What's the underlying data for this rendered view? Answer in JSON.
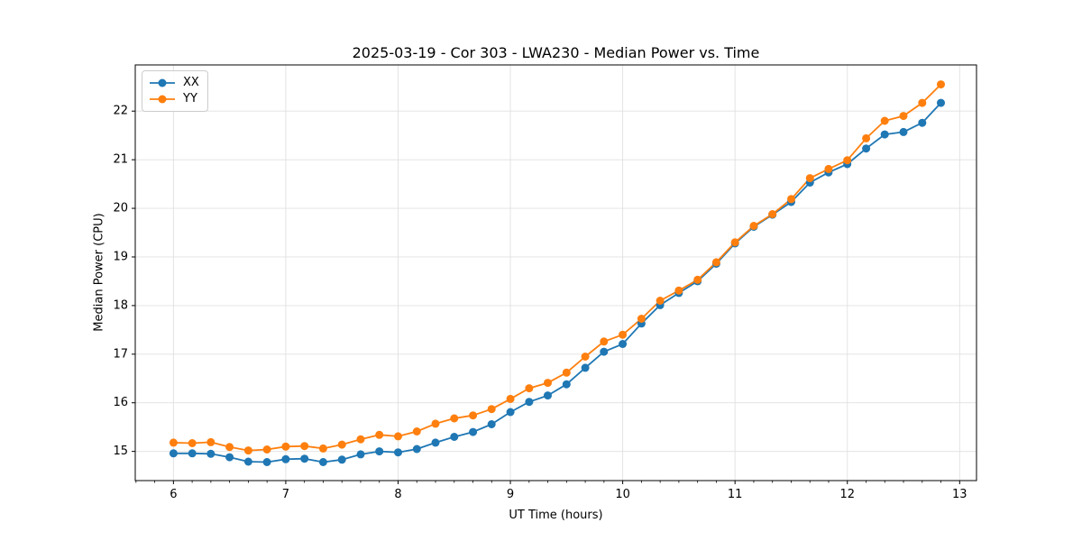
{
  "figure": {
    "title": "2025-03-19 - Cor 303 - LWA230 - Median Power vs. Time"
  },
  "chart_data": {
    "type": "line",
    "title": "2025-03-19 - Cor 303 - LWA230 - Median Power vs. Time",
    "xlabel": "UT Time (hours)",
    "ylabel": "Median Power (CPU)",
    "x": [
      6.0,
      6.167,
      6.333,
      6.5,
      6.667,
      6.833,
      7.0,
      7.167,
      7.333,
      7.5,
      7.667,
      7.833,
      8.0,
      8.167,
      8.333,
      8.5,
      8.667,
      8.833,
      9.0,
      9.167,
      9.333,
      9.5,
      9.667,
      9.833,
      10.0,
      10.167,
      10.333,
      10.5,
      10.667,
      10.833,
      11.0,
      11.167,
      11.333,
      11.5,
      11.667,
      11.833,
      12.0,
      12.167,
      12.333,
      12.5,
      12.667,
      12.833
    ],
    "series": [
      {
        "name": "XX",
        "color": "#1f77b4",
        "values": [
          14.96,
          14.96,
          14.95,
          14.88,
          14.79,
          14.78,
          14.84,
          14.85,
          14.78,
          14.83,
          14.94,
          15.0,
          14.98,
          15.05,
          15.18,
          15.3,
          15.4,
          15.56,
          15.81,
          16.02,
          16.15,
          16.38,
          16.72,
          17.05,
          17.21,
          17.63,
          18.01,
          18.26,
          18.5,
          18.86,
          19.28,
          19.62,
          19.87,
          20.13,
          20.53,
          20.74,
          20.91,
          21.23,
          21.52,
          21.57,
          21.76,
          22.17
        ]
      },
      {
        "name": "YY",
        "color": "#ff7f0e",
        "values": [
          15.18,
          15.17,
          15.19,
          15.09,
          15.02,
          15.04,
          15.1,
          15.11,
          15.06,
          15.14,
          15.25,
          15.34,
          15.31,
          15.41,
          15.57,
          15.68,
          15.74,
          15.87,
          16.08,
          16.3,
          16.41,
          16.62,
          16.95,
          17.26,
          17.4,
          17.73,
          18.1,
          18.31,
          18.53,
          18.89,
          19.3,
          19.64,
          19.88,
          20.19,
          20.62,
          20.81,
          20.99,
          21.44,
          21.8,
          21.9,
          22.17,
          22.55
        ]
      }
    ],
    "xticks": [
      6,
      7,
      8,
      9,
      10,
      11,
      12,
      13
    ],
    "yticks": [
      15,
      16,
      17,
      18,
      19,
      20,
      21,
      22
    ],
    "xlim": [
      5.66,
      13.15
    ],
    "ylim": [
      14.4,
      22.95
    ],
    "x_minor_tick_step": 0.16667,
    "grid": "major-only",
    "grid_color": "#e0e0e0",
    "axis_color": "#000000",
    "marker": "circle",
    "legend": {
      "position": "upper-left",
      "entries": [
        "XX",
        "YY"
      ]
    }
  }
}
